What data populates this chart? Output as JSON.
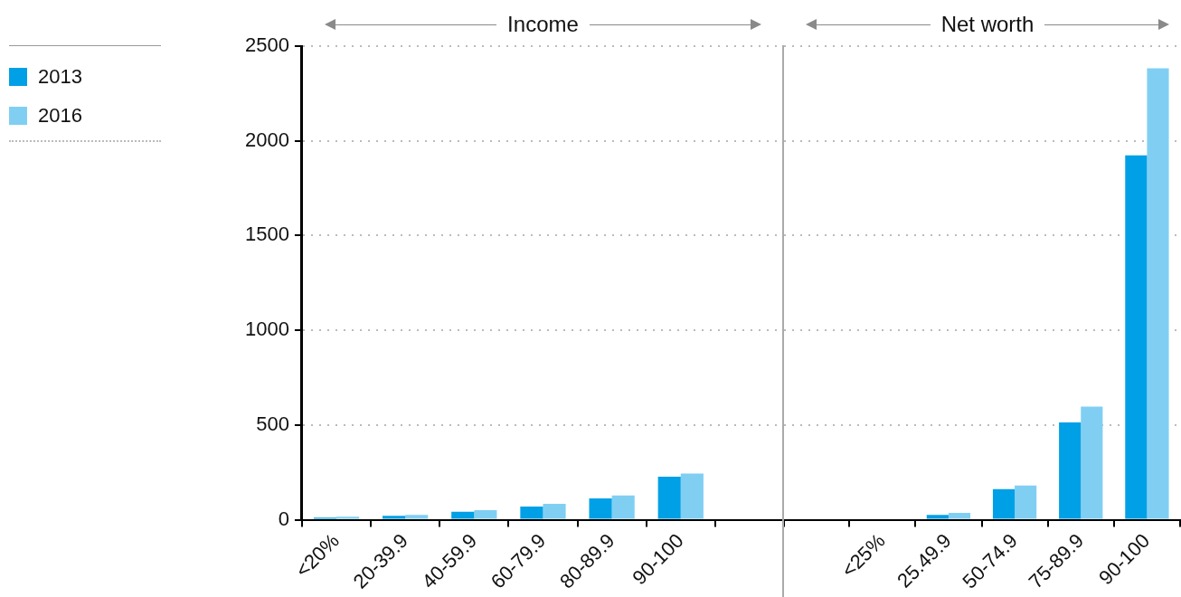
{
  "chart_data": [
    {
      "type": "bar",
      "title": "Income",
      "categories": [
        "<20%",
        "20-39.9",
        "40-59.9",
        "60-79.9",
        "80-89.9",
        "90-100",
        null
      ],
      "series": [
        {
          "name": "2013",
          "color": "#00a0e6",
          "values": [
            11,
            21,
            42,
            70,
            113,
            227,
            null
          ]
        },
        {
          "name": "2016",
          "color": "#80cff3",
          "values": [
            16,
            26,
            50,
            84,
            128,
            244,
            null
          ]
        }
      ],
      "ylim": [
        0,
        2500
      ],
      "yticks": [
        0,
        500,
        1000,
        1500,
        2000,
        2500
      ],
      "grid": "y",
      "legend": "top left"
    },
    {
      "type": "bar",
      "title": "Net worth",
      "categories": [
        null,
        "<25%",
        "25.49.9",
        "50-74.9",
        "75-89.9",
        "90-100"
      ],
      "series": [
        {
          "color": "#00a0e6",
          "values": [
            null,
            0,
            26,
            162,
            514,
            1924
          ]
        },
        {
          "color": "#80cff3",
          "values": [
            null,
            0,
            36,
            181,
            597,
            2383
          ]
        }
      ],
      "ylim": [
        0,
        2500
      ],
      "yticks": [
        0,
        500,
        1000,
        1500,
        2000,
        2500
      ],
      "grid": "y",
      "tick_labels": "x"
    }
  ]
}
